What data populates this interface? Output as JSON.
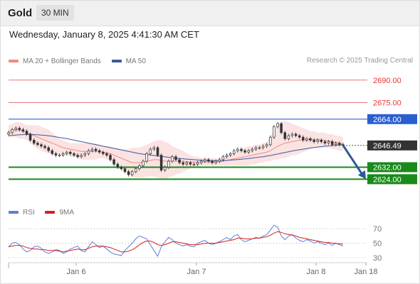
{
  "header": {
    "symbol": "Gold",
    "interval": "30 MIN"
  },
  "timestamp": "Wednesday, January 8, 2025 4:41:30 AM CET",
  "legend": {
    "ma20_label": "MA 20 + Bollinger Bands",
    "ma50_label": "MA 50",
    "rsi_label": "RSI",
    "rsi_ma_label": "9MA"
  },
  "copyright": "Research © 2025 Trading Central",
  "colors": {
    "ma20": "#ef8a80",
    "ma50": "#3a5a9c",
    "bollinger_fill": "#fbe0e0",
    "resistance": "#e57373",
    "pivot": "#2a5fd0",
    "support": "#1a8a1a",
    "price": "#333333",
    "arrow": "#2b5b98",
    "candle": "#333333",
    "rsi": "#5b7fd6",
    "rsi_ma": "#d42020"
  },
  "chart_data": [
    {
      "type": "candlestick",
      "ylim": [
        2610,
        2697
      ],
      "x_tick_labels": [
        "Jan 6",
        "Jan 7",
        "Jan 8",
        "Jan 18"
      ],
      "levels": [
        {
          "label": "2690.00",
          "value": 2690.0,
          "kind": "resistance"
        },
        {
          "label": "2675.00",
          "value": 2675.0,
          "kind": "resistance"
        },
        {
          "label": "2664.00",
          "value": 2664.0,
          "kind": "pivot"
        },
        {
          "label": "2646.49",
          "value": 2646.49,
          "kind": "price"
        },
        {
          "label": "2632.00",
          "value": 2632.0,
          "kind": "support"
        },
        {
          "label": "2624.00",
          "value": 2624.0,
          "kind": "support"
        }
      ],
      "close": [
        2655,
        2657,
        2658,
        2657,
        2656,
        2654,
        2650,
        2648,
        2647,
        2646,
        2645,
        2643,
        2641,
        2640,
        2640,
        2641,
        2642,
        2641,
        2640,
        2639,
        2640,
        2641,
        2643,
        2644,
        2643,
        2642,
        2641,
        2640,
        2637,
        2634,
        2632,
        2631,
        2629,
        2627,
        2629,
        2631,
        2633,
        2636,
        2641,
        2644,
        2645,
        2640,
        2630,
        2632,
        2636,
        2639,
        2637,
        2635,
        2634,
        2635,
        2634,
        2634,
        2635,
        2636,
        2637,
        2636,
        2635,
        2636,
        2637,
        2639,
        2640,
        2641,
        2643,
        2644,
        2643,
        2642,
        2643,
        2644,
        2645,
        2645,
        2646,
        2647,
        2652,
        2659,
        2661,
        2655,
        2651,
        2653,
        2654,
        2653,
        2652,
        2650,
        2651,
        2650,
        2649,
        2650,
        2649,
        2648,
        2649,
        2647,
        2648,
        2647,
        2646.5
      ],
      "ma20": [
        2656,
        2656.5,
        2657,
        2656.5,
        2656,
        2655,
        2654,
        2653,
        2652,
        2651,
        2650,
        2649,
        2648,
        2647,
        2646,
        2645,
        2644.5,
        2644,
        2643.5,
        2643,
        2642.5,
        2642.5,
        2642.5,
        2642.5,
        2642.5,
        2642.5,
        2642,
        2641.5,
        2641,
        2640,
        2639,
        2638,
        2637,
        2636,
        2635,
        2635,
        2635,
        2635.5,
        2636,
        2636.5,
        2637,
        2637,
        2636.5,
        2636,
        2636,
        2636,
        2636,
        2636,
        2636,
        2635.5,
        2635.5,
        2635.5,
        2635.5,
        2635.5,
        2635.5,
        2635.5,
        2635.5,
        2635.5,
        2635.5,
        2636,
        2636.5,
        2637,
        2637.5,
        2638,
        2638.5,
        2639,
        2639.5,
        2640,
        2640.5,
        2641,
        2641.5,
        2642,
        2643,
        2644.5,
        2646,
        2647,
        2648,
        2648.5,
        2649,
        2649.5,
        2650,
        2650,
        2650.5,
        2650.5,
        2650.5,
        2650.5,
        2650,
        2650,
        2649.5,
        2649,
        2648.5,
        2648,
        2647.5
      ],
      "ma50": [
        2653,
        2653.2,
        2653.4,
        2653.6,
        2653.7,
        2653.8,
        2653.8,
        2653.7,
        2653.6,
        2653.4,
        2653.2,
        2652.9,
        2652.6,
        2652.2,
        2651.8,
        2651.4,
        2651,
        2650.5,
        2650,
        2649.5,
        2649,
        2648.5,
        2648,
        2647.5,
        2647,
        2646.5,
        2646,
        2645.5,
        2645,
        2644.5,
        2644,
        2643.5,
        2643,
        2642.5,
        2642,
        2641.5,
        2641,
        2640.7,
        2640.4,
        2640.1,
        2639.8,
        2639.5,
        2639.2,
        2638.9,
        2638.6,
        2638.3,
        2638,
        2637.8,
        2637.6,
        2637.4,
        2637.2,
        2637,
        2636.8,
        2636.6,
        2636.5,
        2636.4,
        2636.3,
        2636.3,
        2636.3,
        2636.4,
        2636.5,
        2636.7,
        2636.9,
        2637.1,
        2637.3,
        2637.5,
        2637.8,
        2638.1,
        2638.4,
        2638.7,
        2639,
        2639.4,
        2639.8,
        2640.3,
        2640.8,
        2641.3,
        2641.8,
        2642.3,
        2642.8,
        2643.2,
        2643.6,
        2644,
        2644.4,
        2644.8,
        2645.1,
        2645.4,
        2645.7,
        2646,
        2646.2,
        2646.4,
        2646.6,
        2646.8,
        2647
      ],
      "bb_upper": [
        2660,
        2661,
        2662,
        2662,
        2661,
        2660,
        2660,
        2660,
        2660,
        2659,
        2658,
        2657,
        2655,
        2653,
        2651,
        2650,
        2649,
        2648,
        2648,
        2648,
        2648,
        2648,
        2648,
        2648,
        2648,
        2647,
        2646,
        2646,
        2646,
        2645,
        2645,
        2644,
        2644,
        2644,
        2645,
        2645,
        2645,
        2646,
        2647,
        2648,
        2649,
        2650,
        2650,
        2649,
        2648,
        2646,
        2645,
        2644,
        2643,
        2641,
        2640,
        2639,
        2639,
        2638,
        2638,
        2638,
        2638,
        2638,
        2638,
        2639,
        2640,
        2641,
        2642,
        2643,
        2644,
        2645,
        2646,
        2646,
        2647,
        2647,
        2648,
        2649,
        2652,
        2656,
        2660,
        2662,
        2663,
        2662,
        2661,
        2660,
        2659,
        2658,
        2657,
        2656,
        2656,
        2655,
        2655,
        2655,
        2654,
        2654,
        2653,
        2653,
        2652
      ],
      "bb_lower": [
        2652,
        2652,
        2652,
        2651,
        2651,
        2650,
        2648,
        2646,
        2644,
        2643,
        2642,
        2641,
        2641,
        2641,
        2640,
        2640,
        2640,
        2639,
        2639,
        2638,
        2637,
        2637,
        2637,
        2637,
        2637,
        2638,
        2638,
        2637,
        2636,
        2634,
        2632,
        2630,
        2629,
        2627,
        2626,
        2625,
        2625,
        2625,
        2626,
        2626,
        2626,
        2625,
        2624,
        2624,
        2625,
        2626,
        2627,
        2628,
        2629,
        2630,
        2631,
        2632,
        2632,
        2633,
        2633,
        2633,
        2633,
        2633,
        2633,
        2633,
        2633,
        2633,
        2633,
        2633,
        2633,
        2633,
        2633,
        2634,
        2634,
        2635,
        2635,
        2636,
        2636,
        2637,
        2637,
        2638,
        2638,
        2639,
        2640,
        2640,
        2641,
        2642,
        2643,
        2644,
        2645,
        2645,
        2645,
        2645,
        2645,
        2644,
        2644,
        2643,
        2643
      ]
    },
    {
      "type": "line",
      "ylim": [
        25,
        80
      ],
      "y_tick_labels": [
        "70",
        "50",
        "30"
      ],
      "y_ticks": [
        70,
        50,
        30
      ],
      "rsi": [
        45,
        50,
        51,
        48,
        42,
        38,
        40,
        45,
        46,
        43,
        38,
        36,
        38,
        41,
        40,
        36,
        38,
        42,
        44,
        46,
        40,
        38,
        45,
        52,
        48,
        44,
        46,
        42,
        38,
        35,
        34,
        33,
        40,
        45,
        50,
        56,
        60,
        58,
        56,
        48,
        40,
        32,
        45,
        52,
        58,
        55,
        50,
        48,
        46,
        48,
        46,
        45,
        50,
        52,
        54,
        50,
        48,
        50,
        52,
        55,
        58,
        55,
        60,
        62,
        55,
        52,
        54,
        56,
        58,
        57,
        60,
        62,
        68,
        75,
        72,
        60,
        55,
        60,
        62,
        57,
        54,
        52,
        55,
        53,
        50,
        52,
        50,
        48,
        50,
        47,
        50,
        48,
        46
      ],
      "rsi_ma": [
        45,
        46,
        47,
        47,
        46,
        44,
        43,
        42,
        42,
        41,
        41,
        40,
        40,
        40,
        39,
        38,
        39,
        40,
        41,
        42,
        41,
        41,
        43,
        45,
        46,
        46,
        46,
        45,
        44,
        42,
        40,
        38,
        38,
        39,
        41,
        44,
        48,
        51,
        53,
        53,
        51,
        48,
        47,
        48,
        50,
        52,
        52,
        51,
        50,
        49,
        48,
        48,
        48,
        49,
        50,
        50,
        50,
        50,
        51,
        52,
        53,
        54,
        55,
        57,
        57,
        56,
        56,
        56,
        57,
        57,
        58,
        59,
        61,
        64,
        66,
        65,
        63,
        62,
        61,
        60,
        58,
        57,
        56,
        55,
        54,
        53,
        52,
        51,
        51,
        50,
        50,
        49,
        49
      ]
    }
  ]
}
